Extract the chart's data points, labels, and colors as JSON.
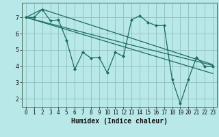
{
  "bg_color": "#b8e8e8",
  "grid_color": "#8fbfbf",
  "line_color": "#1a6b60",
  "xlabel": "Humidex (Indice chaleur)",
  "xlabel_fontsize": 7,
  "tick_fontsize": 6,
  "ylim": [
    1.5,
    7.9
  ],
  "xlim": [
    -0.5,
    23.5
  ],
  "yticks": [
    2,
    3,
    4,
    5,
    6,
    7
  ],
  "xticks": [
    0,
    1,
    2,
    3,
    4,
    5,
    6,
    7,
    8,
    9,
    10,
    11,
    12,
    13,
    14,
    15,
    16,
    17,
    18,
    19,
    20,
    21,
    22,
    23
  ],
  "series1_x": [
    0,
    1,
    2,
    3,
    4,
    5,
    6,
    7,
    8,
    9,
    10,
    11,
    12,
    13,
    14,
    15,
    16,
    17,
    18,
    19,
    20,
    21,
    22,
    23
  ],
  "series1_y": [
    7.0,
    7.0,
    7.5,
    6.8,
    6.85,
    5.6,
    3.8,
    4.85,
    4.5,
    4.55,
    3.6,
    4.85,
    4.6,
    6.85,
    7.1,
    6.7,
    6.5,
    6.5,
    3.2,
    1.7,
    3.2,
    4.55,
    4.0,
    4.0
  ],
  "line2_x": [
    0,
    2,
    23
  ],
  "line2_y": [
    7.0,
    7.5,
    4.1
  ],
  "line3_x": [
    0,
    23
  ],
  "line3_y": [
    7.0,
    3.55
  ],
  "line4_x": [
    0,
    13,
    23
  ],
  "line4_y": [
    7.0,
    5.3,
    4.05
  ]
}
